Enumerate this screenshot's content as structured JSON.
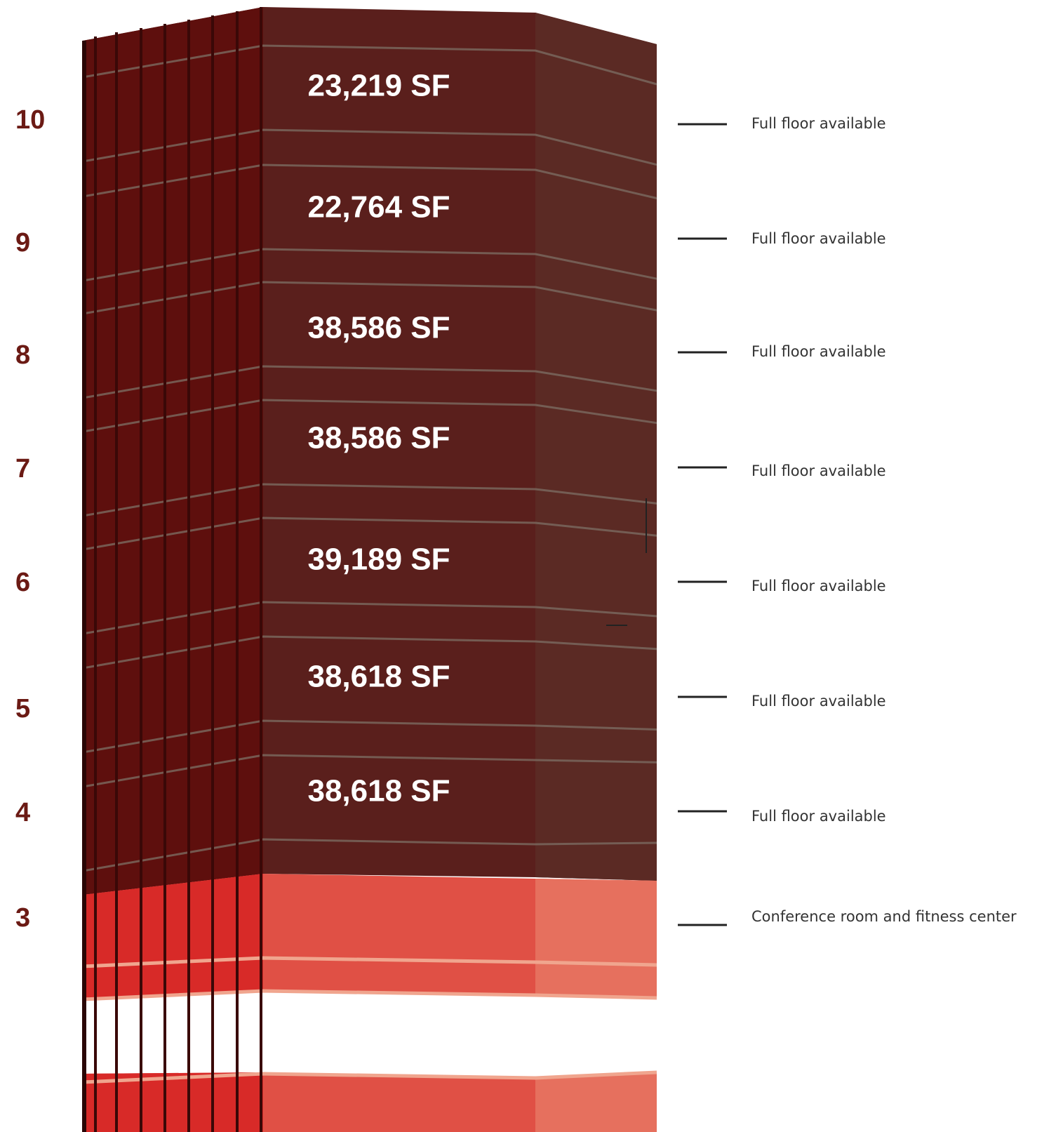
{
  "floors": [
    {
      "number": "10",
      "area": "23,219 SF",
      "note": "Full floor available"
    },
    {
      "number": "9",
      "area": "22,764 SF",
      "note": "Full floor available"
    },
    {
      "number": "8",
      "area": "38,586 SF",
      "note": "Full floor available"
    },
    {
      "number": "7",
      "area": "38,586 SF",
      "note": "Full floor available"
    },
    {
      "number": "6",
      "area": "39,189 SF",
      "note": "Full floor available"
    },
    {
      "number": "5",
      "area": "38,618 SF",
      "note": "Full floor available"
    },
    {
      "number": "4",
      "area": "38,618 SF",
      "note": "Full floor available"
    },
    {
      "number": "3",
      "note": "Conference room  and fitness center"
    }
  ]
}
